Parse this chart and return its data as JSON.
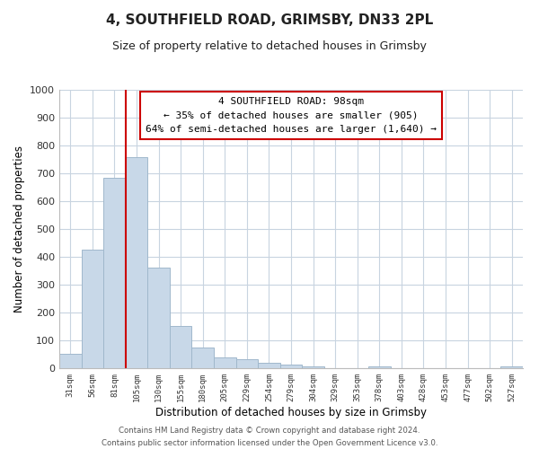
{
  "title": "4, SOUTHFIELD ROAD, GRIMSBY, DN33 2PL",
  "subtitle": "Size of property relative to detached houses in Grimsby",
  "xlabel": "Distribution of detached houses by size in Grimsby",
  "ylabel": "Number of detached properties",
  "bar_labels": [
    "31sqm",
    "56sqm",
    "81sqm",
    "105sqm",
    "130sqm",
    "155sqm",
    "180sqm",
    "205sqm",
    "229sqm",
    "254sqm",
    "279sqm",
    "304sqm",
    "329sqm",
    "353sqm",
    "378sqm",
    "403sqm",
    "428sqm",
    "453sqm",
    "477sqm",
    "502sqm",
    "527sqm"
  ],
  "bar_values": [
    52,
    425,
    685,
    757,
    362,
    152,
    75,
    40,
    32,
    18,
    12,
    8,
    0,
    0,
    5,
    0,
    0,
    0,
    0,
    0,
    8
  ],
  "bar_color": "#c8d8e8",
  "bar_edge_color": "#a0b8cc",
  "vline_x": 2.5,
  "vline_color": "#cc0000",
  "annotation_title": "4 SOUTHFIELD ROAD: 98sqm",
  "annotation_line1": "← 35% of detached houses are smaller (905)",
  "annotation_line2": "64% of semi-detached houses are larger (1,640) →",
  "annotation_box_color": "#ffffff",
  "annotation_box_edge": "#cc0000",
  "ylim": [
    0,
    1000
  ],
  "footer1": "Contains HM Land Registry data © Crown copyright and database right 2024.",
  "footer2": "Contains public sector information licensed under the Open Government Licence v3.0.",
  "bg_color": "#ffffff",
  "grid_color": "#c8d4e0"
}
